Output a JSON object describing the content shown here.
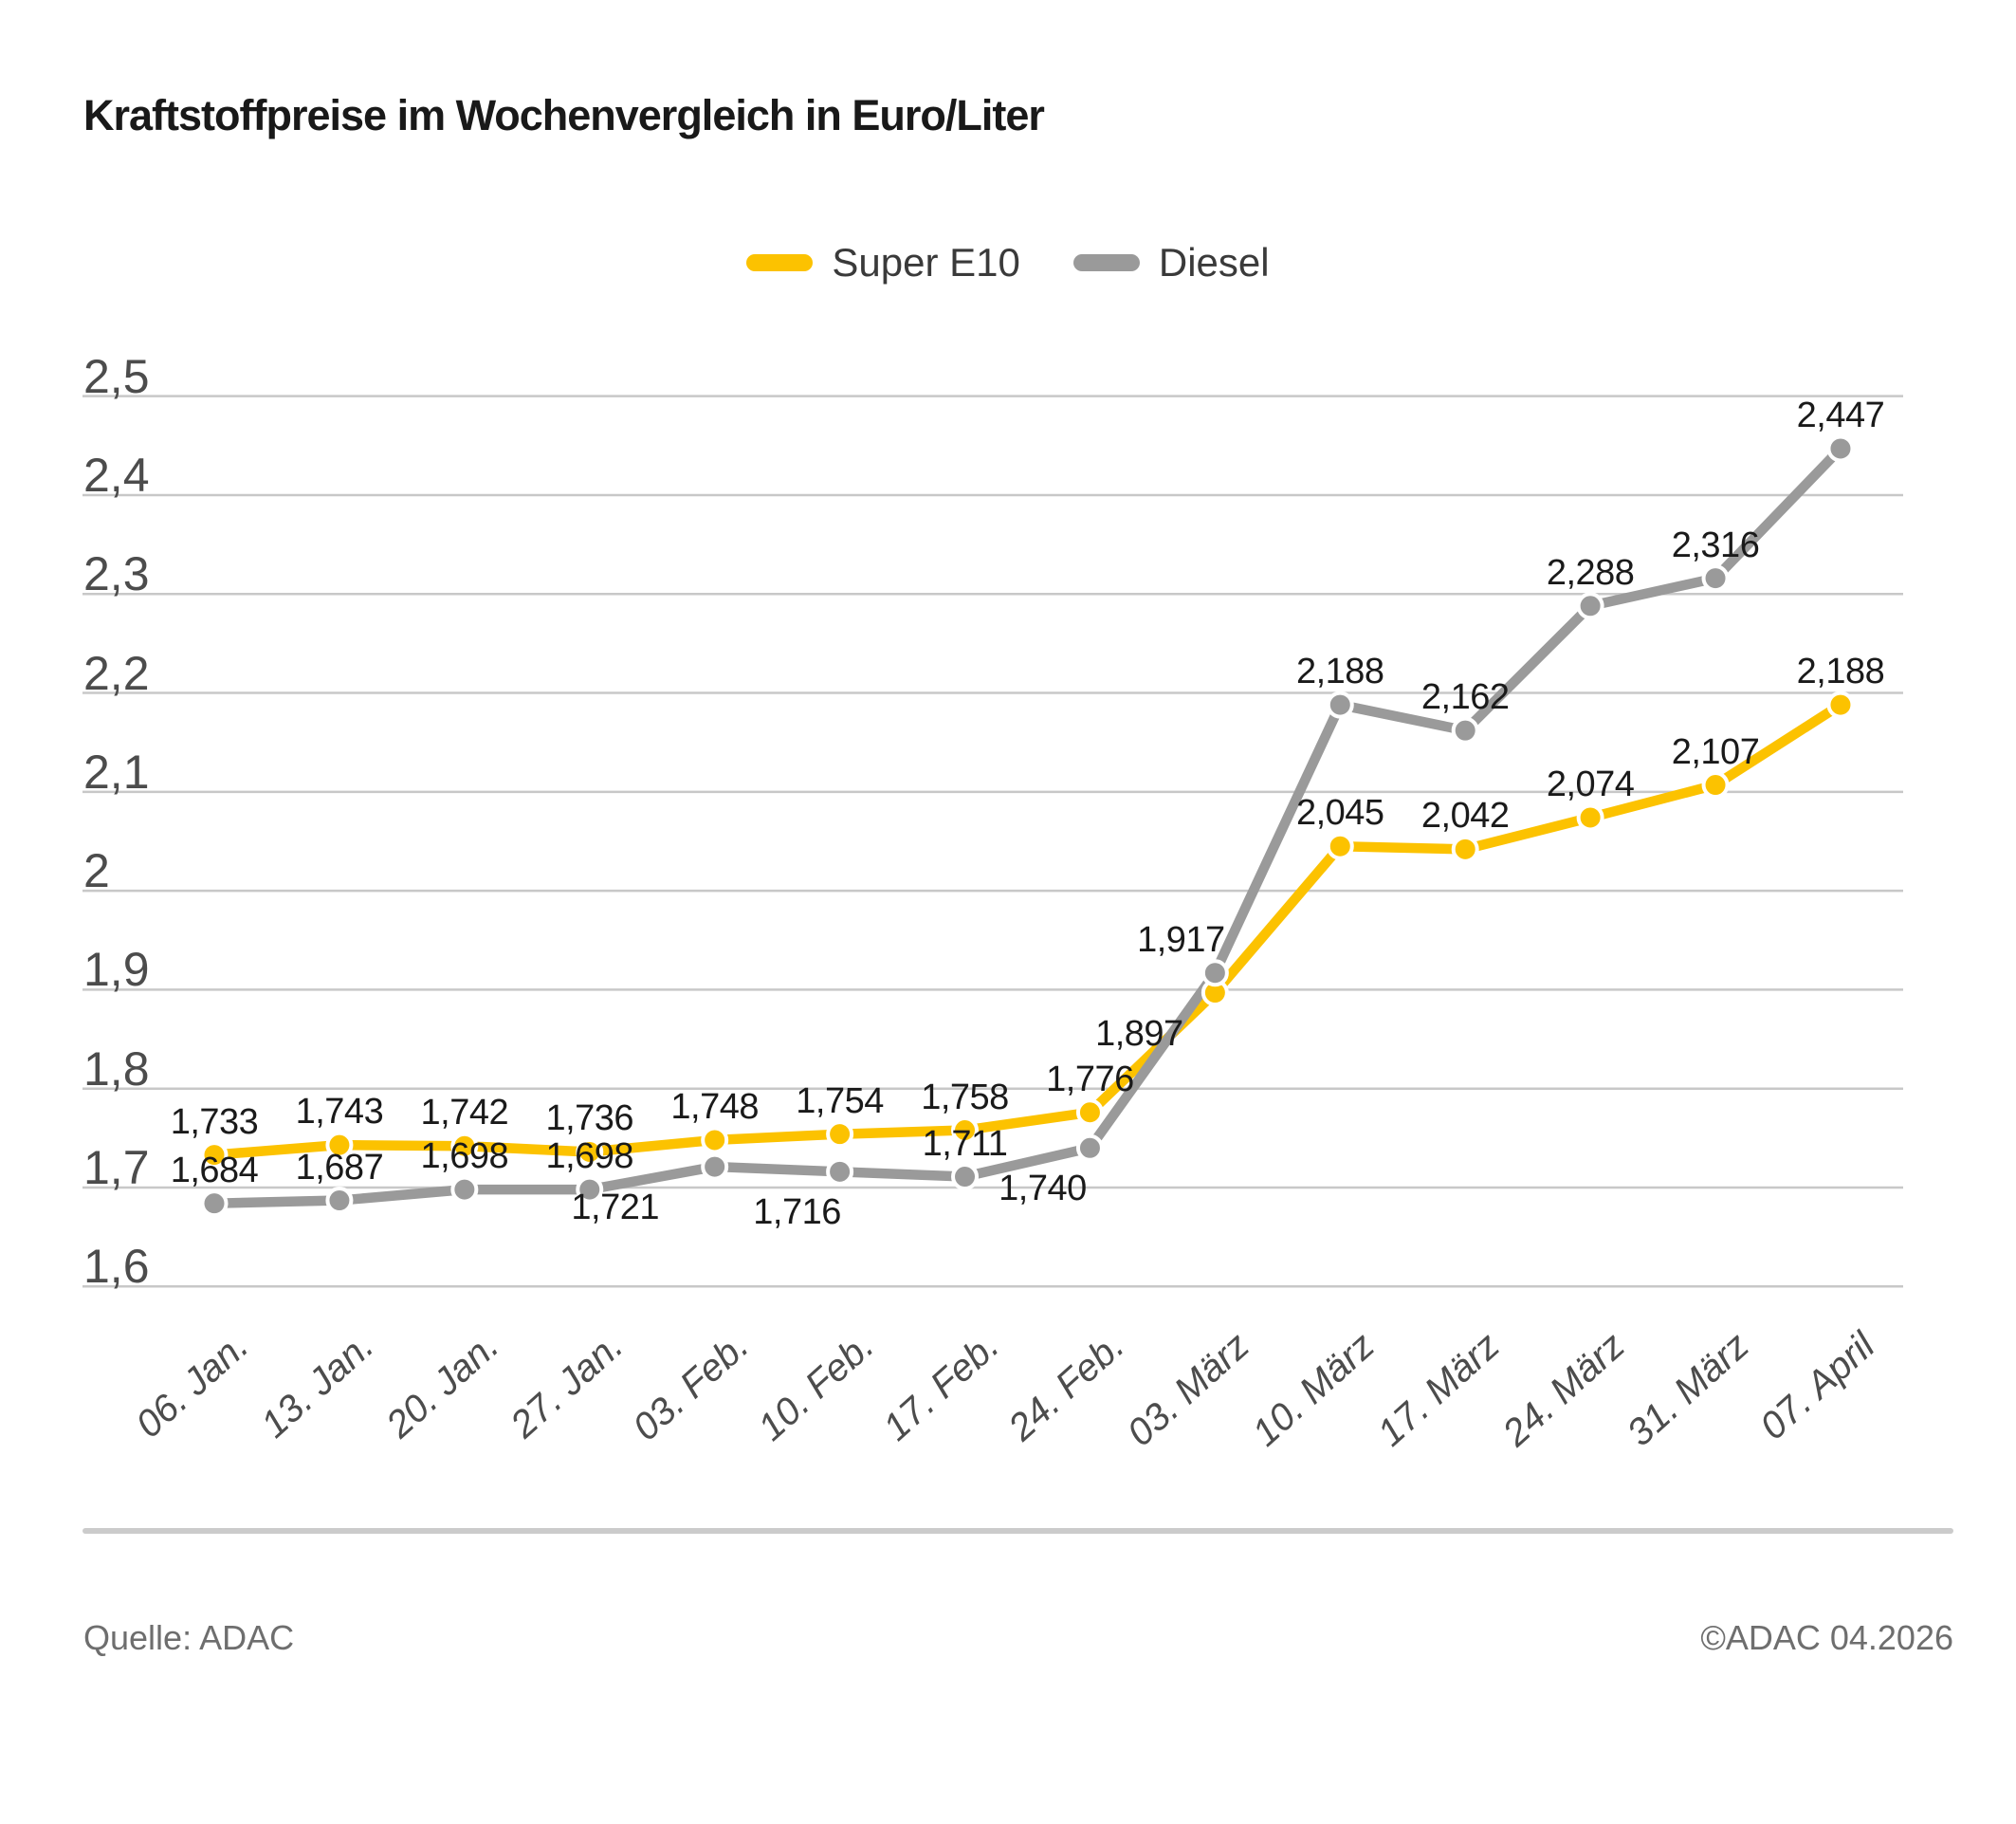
{
  "title": "Kraftstoffpreise im Wochenvergleich in Euro/Liter",
  "chart_data": {
    "type": "line",
    "title": "Kraftstoffpreise im Wochenvergleich in Euro/Liter",
    "unit": "Euro/Liter",
    "categories": [
      "06. Jan.",
      "13. Jan.",
      "20. Jan.",
      "27. Jan.",
      "03. Feb.",
      "10. Feb.",
      "17. Feb.",
      "24. Feb.",
      "03. März",
      "10. März",
      "17. März",
      "24. März",
      "31. März",
      "07. April"
    ],
    "series": [
      {
        "name": "Super E10",
        "color": "#FCC200",
        "values": [
          1.733,
          1.743,
          1.742,
          1.736,
          1.748,
          1.754,
          1.758,
          1.776,
          1.897,
          2.045,
          2.042,
          2.074,
          2.107,
          2.188
        ],
        "labels": [
          "1,733",
          "1,743",
          "1,742",
          "1,736",
          "1,748",
          "1,754",
          "1,758",
          "1,776",
          "1,897",
          "2,045",
          "2,042",
          "2,074",
          "2,107",
          "2,188"
        ],
        "label_side": [
          "above",
          "above",
          "above",
          "above",
          "above",
          "above",
          "above",
          "above",
          "below",
          "above",
          "above",
          "above",
          "above",
          "above"
        ]
      },
      {
        "name": "Diesel",
        "color": "#9A9A9A",
        "values": [
          1.684,
          1.687,
          1.698,
          1.698,
          1.721,
          1.716,
          1.711,
          1.74,
          1.917,
          2.188,
          2.162,
          2.288,
          2.316,
          2.447
        ],
        "labels": [
          "1,684",
          "1,687",
          "1,698",
          "1,698",
          "1,721",
          "1,716",
          "1,711",
          "1,740",
          "1,917",
          "2,188",
          "2,162",
          "2,288",
          "2,316",
          "2,447"
        ],
        "label_side": [
          "above",
          "above",
          "above",
          "above",
          "below",
          "below",
          "above",
          "below",
          "above",
          "above",
          "above",
          "above",
          "above",
          "above"
        ]
      }
    ],
    "yticks": [
      "2,5",
      "2,4",
      "2,3",
      "2,2",
      "2,1",
      "2",
      "1,9",
      "1,8",
      "1,7",
      "1,6"
    ],
    "ylim": [
      1.6,
      2.5
    ],
    "xlabel": "",
    "ylabel": "",
    "grid": true,
    "legend_position": "top"
  },
  "footer": {
    "source": "Quelle: ADAC",
    "copyright": "©ADAC 04.2026"
  },
  "colors": {
    "super_e10": "#FCC200",
    "diesel": "#9A9A9A",
    "gridline": "#C8C8C8",
    "axis_text": "#4C4C4C",
    "label_text": "#1A1A1A",
    "footer_text": "#6E6E6E"
  }
}
